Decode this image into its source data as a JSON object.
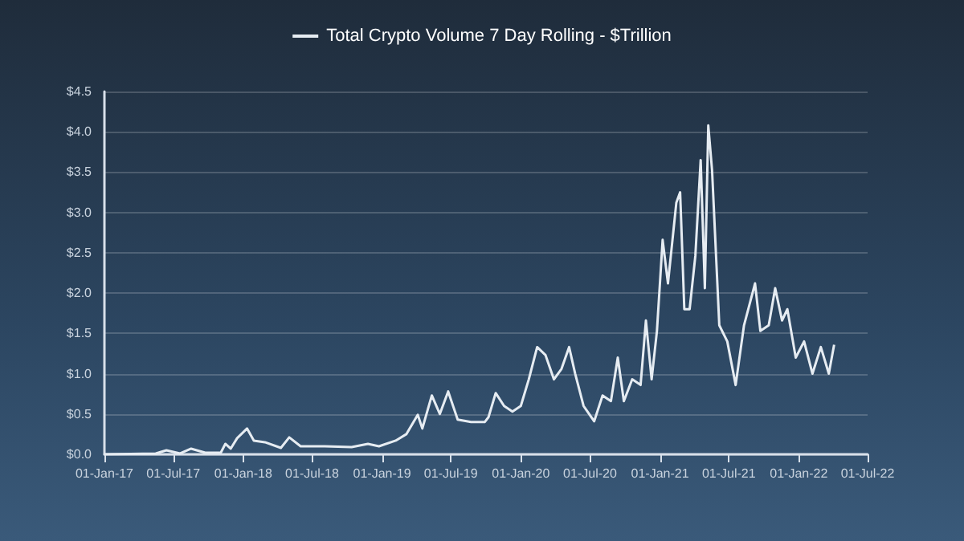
{
  "chart_data": {
    "type": "line",
    "legend": "top",
    "grid": "y",
    "x": [
      "2017-01-01",
      "2017-05-16",
      "2017-06-13",
      "2017-07-19",
      "2017-08-17",
      "2017-09-23",
      "2017-11-03",
      "2017-11-15",
      "2017-11-29",
      "2017-12-16",
      "2018-01-11",
      "2018-01-29",
      "2018-02-27",
      "2018-04-10",
      "2018-05-02",
      "2018-06-01",
      "2018-08-03",
      "2018-10-13",
      "2018-11-25",
      "2018-12-24",
      "2019-02-06",
      "2019-03-06",
      "2019-04-05",
      "2019-04-17",
      "2019-05-12",
      "2019-06-02",
      "2019-06-24",
      "2019-07-19",
      "2019-08-23",
      "2019-09-28",
      "2019-10-08",
      "2019-10-27",
      "2019-11-18",
      "2019-12-10",
      "2020-01-01",
      "2020-01-22",
      "2020-02-13",
      "2020-03-06",
      "2020-03-28",
      "2020-04-17",
      "2020-05-07",
      "2020-05-23",
      "2020-06-14",
      "2020-07-12",
      "2020-08-03",
      "2020-08-25",
      "2020-09-12",
      "2020-09-28",
      "2020-10-20",
      "2020-11-11",
      "2020-11-25",
      "2020-12-10",
      "2020-12-24",
      "2021-01-08",
      "2021-01-22",
      "2021-02-13",
      "2021-02-23",
      "2021-03-06",
      "2021-03-20",
      "2021-04-04",
      "2021-04-18",
      "2021-04-29",
      "2021-05-08",
      "2021-05-18",
      "2021-06-06",
      "2021-06-27",
      "2021-07-19",
      "2021-08-10",
      "2021-09-08",
      "2021-09-22",
      "2021-10-14",
      "2021-10-31",
      "2021-11-18",
      "2021-12-02",
      "2021-12-24",
      "2022-01-15",
      "2022-02-06",
      "2022-02-28",
      "2022-03-21",
      "2022-04-04"
    ],
    "series": [
      {
        "name": "Total Crypto Volume 7 Day Rolling - $Trillion",
        "color": "#e6ecf2",
        "values": [
          0.0,
          0.01,
          0.05,
          0.01,
          0.07,
          0.02,
          0.02,
          0.13,
          0.07,
          0.2,
          0.32,
          0.17,
          0.15,
          0.08,
          0.21,
          0.1,
          0.1,
          0.09,
          0.13,
          0.1,
          0.17,
          0.25,
          0.49,
          0.32,
          0.73,
          0.5,
          0.78,
          0.43,
          0.4,
          0.4,
          0.46,
          0.76,
          0.6,
          0.53,
          0.6,
          0.93,
          1.33,
          1.23,
          0.93,
          1.06,
          1.33,
          1.0,
          0.6,
          0.41,
          0.73,
          0.66,
          1.2,
          0.66,
          0.93,
          0.86,
          1.66,
          0.93,
          1.53,
          2.66,
          2.12,
          3.12,
          3.25,
          1.8,
          1.8,
          2.46,
          3.65,
          2.06,
          4.08,
          3.52,
          1.6,
          1.4,
          0.86,
          1.6,
          2.12,
          1.53,
          1.6,
          2.06,
          1.66,
          1.8,
          1.2,
          1.4,
          1.0,
          1.33,
          1.0,
          1.36
        ]
      }
    ],
    "xlim": [
      "2017-01-01",
      "2022-07-01"
    ],
    "xticks": [
      {
        "value": "2017-01-01",
        "label": "01-Jan-17"
      },
      {
        "value": "2017-07-01",
        "label": "01-Jul-17"
      },
      {
        "value": "2018-01-01",
        "label": "01-Jan-18"
      },
      {
        "value": "2018-07-01",
        "label": "01-Jul-18"
      },
      {
        "value": "2019-01-01",
        "label": "01-Jan-19"
      },
      {
        "value": "2019-07-01",
        "label": "01-Jul-19"
      },
      {
        "value": "2020-01-01",
        "label": "01-Jan-20"
      },
      {
        "value": "2020-07-01",
        "label": "01-Jul-20"
      },
      {
        "value": "2021-01-01",
        "label": "01-Jan-21"
      },
      {
        "value": "2021-07-01",
        "label": "01-Jul-21"
      },
      {
        "value": "2022-01-01",
        "label": "01-Jan-22"
      },
      {
        "value": "2022-07-01",
        "label": "01-Jul-22"
      }
    ],
    "ylim": [
      0,
      4.5
    ],
    "yticks": [
      {
        "value": 0,
        "label": "$0.0"
      },
      {
        "value": 0.5,
        "label": "$0.5"
      },
      {
        "value": 1,
        "label": "$1.0"
      },
      {
        "value": 1.5,
        "label": "$1.5"
      },
      {
        "value": 2,
        "label": "$2.0"
      },
      {
        "value": 2.5,
        "label": "$2.5"
      },
      {
        "value": 3,
        "label": "$3.0"
      },
      {
        "value": 3.5,
        "label": "$3.5"
      },
      {
        "value": 4,
        "label": "$4.0"
      },
      {
        "value": 4.5,
        "label": "$4.5"
      }
    ]
  }
}
